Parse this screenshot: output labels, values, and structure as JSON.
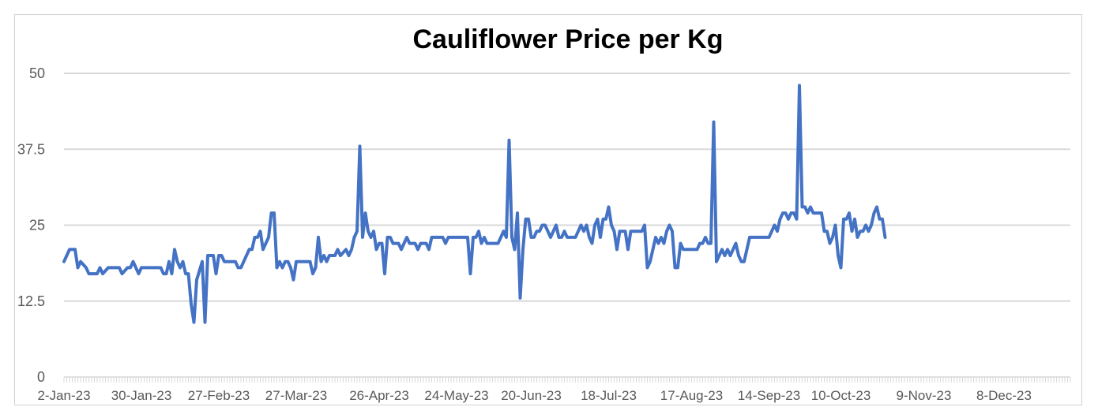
{
  "chart_data": {
    "type": "line",
    "title": "Cauliflower Price per Kg",
    "xlabel": "",
    "ylabel": "",
    "ylim": [
      0,
      50
    ],
    "yticks": [
      0,
      12.5,
      25,
      37.5,
      50
    ],
    "ytick_labels": [
      "0",
      "12.5",
      "25",
      "37.5",
      "50"
    ],
    "grid": true,
    "legend": "none",
    "colors": {
      "line": "#4472c4",
      "grid": "#d9d9d9",
      "axis_text": "#595959",
      "title": "#000000"
    },
    "x_categories_count": 365,
    "xtick_labels": [
      {
        "day": 0,
        "label": "2-Jan-23"
      },
      {
        "day": 28,
        "label": "30-Jan-23"
      },
      {
        "day": 56,
        "label": "27-Feb-23"
      },
      {
        "day": 84,
        "label": "27-Mar-23"
      },
      {
        "day": 114,
        "label": "26-Apr-23"
      },
      {
        "day": 142,
        "label": "24-May-23"
      },
      {
        "day": 169,
        "label": "20-Jun-23"
      },
      {
        "day": 197,
        "label": "18-Jul-23"
      },
      {
        "day": 227,
        "label": "17-Aug-23"
      },
      {
        "day": 255,
        "label": "14-Sep-23"
      },
      {
        "day": 281,
        "label": "10-Oct-23"
      },
      {
        "day": 311,
        "label": "9-Nov-23"
      },
      {
        "day": 340,
        "label": "8-Dec-23"
      }
    ],
    "series": [
      {
        "name": "Cauliflower Price per Kg",
        "points": [
          [
            0,
            19
          ],
          [
            2,
            21
          ],
          [
            4,
            21
          ],
          [
            5,
            18
          ],
          [
            6,
            19
          ],
          [
            8,
            18
          ],
          [
            9,
            17
          ],
          [
            12,
            17
          ],
          [
            13,
            18
          ],
          [
            14,
            17
          ],
          [
            16,
            18
          ],
          [
            20,
            18
          ],
          [
            21,
            17
          ],
          [
            23,
            18
          ],
          [
            24,
            18
          ],
          [
            25,
            19
          ],
          [
            27,
            17
          ],
          [
            28,
            18
          ],
          [
            35,
            18
          ],
          [
            36,
            17
          ],
          [
            37,
            17
          ],
          [
            38,
            19
          ],
          [
            39,
            17
          ],
          [
            40,
            21
          ],
          [
            41,
            19
          ],
          [
            42,
            18
          ],
          [
            43,
            19
          ],
          [
            44,
            17
          ],
          [
            45,
            17
          ],
          [
            46,
            12
          ],
          [
            47,
            9
          ],
          [
            48,
            16
          ],
          [
            50,
            19
          ],
          [
            51,
            9
          ],
          [
            52,
            20
          ],
          [
            54,
            20
          ],
          [
            55,
            17
          ],
          [
            56,
            20
          ],
          [
            57,
            20
          ],
          [
            58,
            19
          ],
          [
            62,
            19
          ],
          [
            63,
            18
          ],
          [
            64,
            18
          ],
          [
            65,
            19
          ],
          [
            67,
            21
          ],
          [
            68,
            21
          ],
          [
            69,
            23
          ],
          [
            70,
            23
          ],
          [
            71,
            24
          ],
          [
            72,
            21
          ],
          [
            73,
            22
          ],
          [
            74,
            23
          ],
          [
            75,
            27
          ],
          [
            76,
            27
          ],
          [
            77,
            18
          ],
          [
            78,
            19
          ],
          [
            79,
            18
          ],
          [
            80,
            19
          ],
          [
            81,
            19
          ],
          [
            82,
            18
          ],
          [
            83,
            16
          ],
          [
            84,
            19
          ],
          [
            87,
            19
          ],
          [
            89,
            19
          ],
          [
            90,
            17
          ],
          [
            91,
            18
          ],
          [
            92,
            23
          ],
          [
            93,
            19
          ],
          [
            94,
            20
          ],
          [
            95,
            19
          ],
          [
            96,
            20
          ],
          [
            98,
            20
          ],
          [
            99,
            21
          ],
          [
            100,
            20
          ],
          [
            102,
            21
          ],
          [
            103,
            20
          ],
          [
            104,
            21
          ],
          [
            105,
            23
          ],
          [
            106,
            24
          ],
          [
            107,
            38
          ],
          [
            108,
            23
          ],
          [
            109,
            27
          ],
          [
            110,
            24
          ],
          [
            111,
            23
          ],
          [
            112,
            24
          ],
          [
            113,
            21
          ],
          [
            114,
            22
          ],
          [
            115,
            22
          ],
          [
            116,
            17
          ],
          [
            117,
            23
          ],
          [
            118,
            23
          ],
          [
            119,
            22
          ],
          [
            121,
            22
          ],
          [
            122,
            21
          ],
          [
            123,
            22
          ],
          [
            124,
            23
          ],
          [
            125,
            22
          ],
          [
            127,
            22
          ],
          [
            128,
            21
          ],
          [
            129,
            22
          ],
          [
            131,
            22
          ],
          [
            132,
            21
          ],
          [
            133,
            23
          ],
          [
            137,
            23
          ],
          [
            138,
            22
          ],
          [
            139,
            23
          ],
          [
            146,
            23
          ],
          [
            147,
            17
          ],
          [
            148,
            23
          ],
          [
            149,
            23
          ],
          [
            150,
            24
          ],
          [
            151,
            22
          ],
          [
            152,
            23
          ],
          [
            153,
            22
          ],
          [
            156,
            22
          ],
          [
            157,
            22
          ],
          [
            158,
            23
          ],
          [
            159,
            24
          ],
          [
            160,
            23
          ],
          [
            161,
            39
          ],
          [
            162,
            23
          ],
          [
            163,
            21
          ],
          [
            164,
            27
          ],
          [
            165,
            13
          ],
          [
            166,
            21
          ],
          [
            167,
            26
          ],
          [
            168,
            26
          ],
          [
            169,
            23
          ],
          [
            170,
            23
          ],
          [
            171,
            24
          ],
          [
            172,
            24
          ],
          [
            173,
            25
          ],
          [
            174,
            25
          ],
          [
            175,
            24
          ],
          [
            176,
            23
          ],
          [
            178,
            25
          ],
          [
            179,
            23
          ],
          [
            180,
            23
          ],
          [
            181,
            24
          ],
          [
            182,
            23
          ],
          [
            185,
            23
          ],
          [
            186,
            24
          ],
          [
            187,
            25
          ],
          [
            188,
            24
          ],
          [
            189,
            25
          ],
          [
            190,
            23
          ],
          [
            191,
            22
          ],
          [
            192,
            25
          ],
          [
            193,
            26
          ],
          [
            194,
            23
          ],
          [
            195,
            26
          ],
          [
            196,
            26
          ],
          [
            197,
            28
          ],
          [
            198,
            25
          ],
          [
            199,
            24
          ],
          [
            200,
            21
          ],
          [
            201,
            24
          ],
          [
            203,
            24
          ],
          [
            204,
            21
          ],
          [
            205,
            24
          ],
          [
            209,
            24
          ],
          [
            210,
            25
          ],
          [
            211,
            18
          ],
          [
            212,
            19
          ],
          [
            213,
            21
          ],
          [
            214,
            23
          ],
          [
            215,
            22
          ],
          [
            216,
            23
          ],
          [
            217,
            22
          ],
          [
            218,
            24
          ],
          [
            219,
            25
          ],
          [
            220,
            24
          ],
          [
            221,
            18
          ],
          [
            222,
            18
          ],
          [
            223,
            22
          ],
          [
            224,
            21
          ],
          [
            229,
            21
          ],
          [
            230,
            22
          ],
          [
            231,
            22
          ],
          [
            232,
            23
          ],
          [
            233,
            22
          ],
          [
            234,
            22
          ],
          [
            235,
            42
          ],
          [
            236,
            19
          ],
          [
            237,
            20
          ],
          [
            238,
            21
          ],
          [
            239,
            20
          ],
          [
            240,
            21
          ],
          [
            241,
            20
          ],
          [
            243,
            22
          ],
          [
            244,
            20
          ],
          [
            245,
            19
          ],
          [
            246,
            19
          ],
          [
            247,
            21
          ],
          [
            248,
            23
          ],
          [
            255,
            23
          ],
          [
            256,
            24
          ],
          [
            257,
            25
          ],
          [
            258,
            24
          ],
          [
            259,
            26
          ],
          [
            260,
            27
          ],
          [
            261,
            27
          ],
          [
            262,
            26
          ],
          [
            263,
            27
          ],
          [
            264,
            27
          ],
          [
            265,
            26
          ],
          [
            266,
            48
          ],
          [
            267,
            28
          ],
          [
            268,
            28
          ],
          [
            269,
            27
          ],
          [
            270,
            28
          ],
          [
            271,
            27
          ],
          [
            274,
            27
          ],
          [
            275,
            24
          ],
          [
            276,
            24
          ],
          [
            277,
            22
          ],
          [
            278,
            23
          ],
          [
            279,
            25
          ],
          [
            280,
            20
          ],
          [
            281,
            18
          ],
          [
            282,
            26
          ],
          [
            283,
            26
          ],
          [
            284,
            27
          ],
          [
            285,
            24
          ],
          [
            286,
            26
          ],
          [
            287,
            23
          ],
          [
            288,
            24
          ],
          [
            289,
            24
          ],
          [
            290,
            25
          ],
          [
            291,
            24
          ],
          [
            292,
            25
          ],
          [
            293,
            27
          ],
          [
            294,
            28
          ],
          [
            295,
            26
          ],
          [
            296,
            26
          ],
          [
            297,
            23
          ]
        ]
      }
    ]
  }
}
